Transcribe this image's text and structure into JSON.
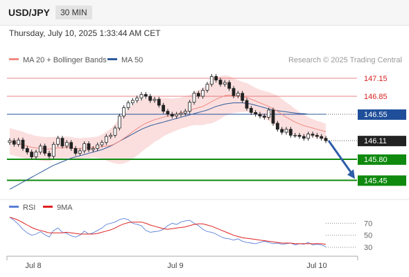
{
  "header": {
    "symbol": "USD/JPY",
    "timeframe": "30 MIN",
    "datetime": "Thursday, July 10, 2025 1:33:44 AM CET"
  },
  "legend": {
    "ma20": {
      "label": "MA 20 + Bollinger Bands",
      "color": "#f08a80"
    },
    "ma50": {
      "label": "MA 50",
      "color": "#2d5a9a"
    },
    "credit": "Research © 2025 Trading Central"
  },
  "rsi_legend": {
    "rsi": {
      "label": "RSI",
      "color": "#5b7fd6"
    },
    "ma9": {
      "label": "9MA",
      "color": "#e02020"
    }
  },
  "colors": {
    "up": "#ffffff",
    "down": "#222222",
    "resistance": "#e05a5a",
    "support": "#0f8a0f",
    "current": "#222222",
    "ma50_level": "#1f4f9a",
    "arrow": "#2d5da8",
    "band": "#fbdcdc"
  },
  "chart_data": [
    {
      "type": "candlestick",
      "title": "USD/JPY",
      "ylim": [
        145.2,
        147.3
      ],
      "x_ticks": [
        "Jul 8",
        "Jul 9",
        "Jul 10"
      ],
      "levels": [
        {
          "value": 147.15,
          "label": "147.15",
          "kind": "resistance"
        },
        {
          "value": 146.85,
          "label": "146.85",
          "kind": "resistance"
        },
        {
          "value": 146.55,
          "label": "146.55",
          "kind": "ma50"
        },
        {
          "value": 146.11,
          "label": "146.11",
          "kind": "current"
        },
        {
          "value": 145.8,
          "label": "145.80",
          "kind": "support"
        },
        {
          "value": 145.45,
          "label": "145.45",
          "kind": "support"
        }
      ],
      "projection": {
        "from": 146.11,
        "to": 145.45
      },
      "close": [
        146.11,
        146.05,
        146.12,
        145.98,
        145.92,
        145.84,
        145.92,
        146.02,
        145.9,
        145.85,
        146.05,
        146.15,
        146.02,
        146.08,
        145.98,
        145.9,
        145.94,
        146.06,
        145.96,
        145.98,
        146.04,
        146.08,
        146.18,
        146.2,
        146.32,
        146.52,
        146.66,
        146.74,
        146.78,
        146.82,
        146.88,
        146.85,
        146.78,
        146.8,
        146.7,
        146.6,
        146.55,
        146.52,
        146.55,
        146.57,
        146.6,
        146.75,
        146.9,
        146.85,
        146.95,
        147.05,
        147.18,
        147.12,
        147.05,
        147.08,
        146.98,
        146.86,
        146.9,
        146.78,
        146.65,
        146.58,
        146.55,
        146.52,
        146.5,
        146.62,
        146.4,
        146.3,
        146.25,
        146.3,
        146.2,
        146.2,
        146.18,
        146.15,
        146.22,
        146.2,
        146.18,
        146.15,
        146.11
      ],
      "ma20": [
        146.1,
        146.08,
        146.06,
        146.04,
        146.02,
        146.0,
        145.99,
        145.98,
        145.97,
        145.97,
        145.98,
        145.99,
        145.99,
        146.0,
        145.99,
        145.98,
        145.98,
        145.99,
        145.99,
        146.0,
        146.0,
        146.01,
        146.02,
        146.03,
        146.06,
        146.1,
        146.15,
        146.2,
        146.26,
        146.31,
        146.36,
        146.4,
        146.43,
        146.46,
        146.48,
        146.5,
        146.52,
        146.53,
        146.55,
        146.57,
        146.59,
        146.61,
        146.64,
        146.66,
        146.68,
        146.72,
        146.76,
        146.8,
        146.83,
        146.86,
        146.87,
        146.86,
        146.85,
        146.84,
        146.83,
        146.8,
        146.77,
        146.74,
        146.71,
        146.68,
        146.64,
        146.6,
        146.55,
        146.5,
        146.46,
        146.42,
        146.39,
        146.36,
        146.34,
        146.32,
        146.3,
        146.28,
        146.26
      ],
      "band_width": [
        0.22,
        0.22,
        0.22,
        0.22,
        0.21,
        0.21,
        0.2,
        0.2,
        0.2,
        0.2,
        0.19,
        0.19,
        0.18,
        0.18,
        0.18,
        0.18,
        0.17,
        0.17,
        0.17,
        0.17,
        0.18,
        0.2,
        0.24,
        0.28,
        0.33,
        0.38,
        0.42,
        0.44,
        0.45,
        0.45,
        0.44,
        0.42,
        0.4,
        0.37,
        0.35,
        0.32,
        0.3,
        0.28,
        0.27,
        0.26,
        0.26,
        0.26,
        0.27,
        0.29,
        0.31,
        0.33,
        0.36,
        0.37,
        0.36,
        0.34,
        0.32,
        0.29,
        0.27,
        0.25,
        0.24,
        0.23,
        0.22,
        0.22,
        0.23,
        0.24,
        0.25,
        0.26,
        0.26,
        0.25,
        0.24,
        0.22,
        0.2,
        0.18,
        0.16,
        0.15,
        0.14,
        0.14,
        0.13
      ],
      "ma50": [
        145.3,
        145.34,
        145.38,
        145.42,
        145.46,
        145.5,
        145.54,
        145.58,
        145.62,
        145.66,
        145.7,
        145.73,
        145.76,
        145.79,
        145.82,
        145.84,
        145.86,
        145.88,
        145.9,
        145.92,
        145.94,
        145.96,
        145.99,
        146.02,
        146.06,
        146.1,
        146.14,
        146.18,
        146.22,
        146.26,
        146.3,
        146.33,
        146.36,
        146.38,
        146.4,
        146.42,
        146.44,
        146.46,
        146.48,
        146.5,
        146.52,
        146.54,
        146.56,
        146.58,
        146.6,
        146.62,
        146.65,
        146.68,
        146.7,
        146.72,
        146.73,
        146.74,
        146.74,
        146.74,
        146.73,
        146.72,
        146.7,
        146.68,
        146.66,
        146.64,
        146.62,
        146.61,
        146.6,
        146.59,
        146.58,
        146.57,
        146.56,
        146.56,
        146.55,
        146.55,
        146.55,
        146.55,
        146.55
      ]
    },
    {
      "type": "line",
      "title": "RSI",
      "ylim": [
        22,
        82
      ],
      "y_ticks": [
        70,
        50,
        30
      ],
      "series": [
        {
          "name": "RSI",
          "values": [
            80,
            75,
            68,
            60,
            54,
            50,
            52,
            56,
            51,
            47,
            58,
            62,
            55,
            53,
            49,
            47,
            50,
            57,
            52,
            54,
            58,
            62,
            68,
            70,
            72,
            76,
            78,
            76,
            70,
            68,
            66,
            58,
            55,
            56,
            57,
            60,
            66,
            70,
            68,
            72,
            74,
            75,
            70,
            66,
            60,
            56,
            55,
            52,
            48,
            45,
            44,
            42,
            44,
            40,
            38,
            37,
            36,
            38,
            40,
            38,
            36,
            37,
            35,
            36,
            37,
            34,
            36,
            35,
            38,
            34,
            35,
            34,
            31
          ]
        },
        {
          "name": "9MA",
          "values": [
            80,
            78,
            75,
            71,
            67,
            63,
            60,
            58,
            56,
            54,
            54,
            54,
            54,
            55,
            54,
            53,
            52,
            52,
            52,
            52,
            53,
            55,
            57,
            59,
            62,
            66,
            69,
            71,
            72,
            72,
            72,
            70,
            67,
            65,
            63,
            61,
            60,
            61,
            62,
            63,
            64,
            66,
            68,
            69,
            69,
            67,
            65,
            62,
            59,
            56,
            53,
            50,
            48,
            46,
            45,
            44,
            43,
            42,
            41,
            40,
            39,
            38,
            37,
            37,
            37,
            36,
            36,
            36,
            36,
            36,
            36,
            36,
            35
          ]
        }
      ]
    }
  ]
}
